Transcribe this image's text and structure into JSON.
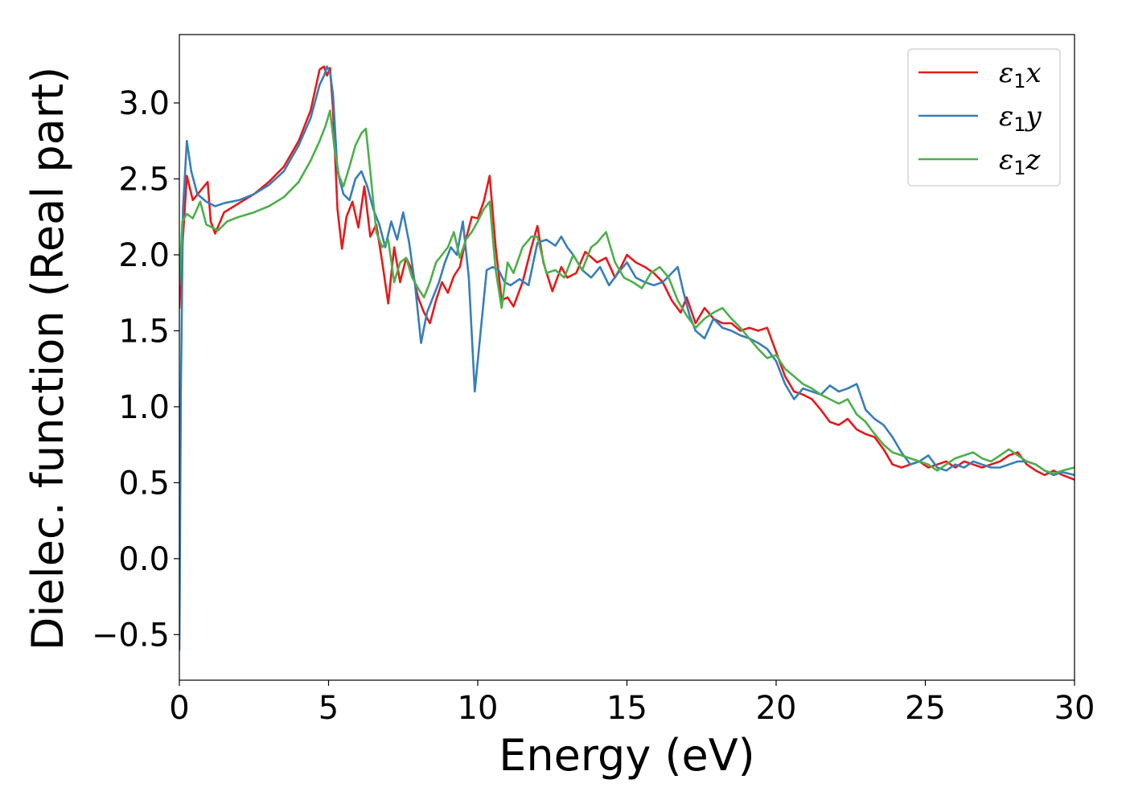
{
  "chart_data": {
    "type": "line",
    "xlabel": "Energy (eV)",
    "ylabel": "Dielec. function (Real part)",
    "xlim": [
      0,
      30
    ],
    "ylim": [
      -0.8,
      3.45
    ],
    "xticks": [
      0,
      5,
      10,
      15,
      20,
      25,
      30
    ],
    "xtick_labels": [
      "0",
      "5",
      "10",
      "15",
      "20",
      "25",
      "30"
    ],
    "yticks": [
      -0.5,
      0.0,
      0.5,
      1.0,
      1.5,
      2.0,
      2.5,
      3.0
    ],
    "ytick_labels": [
      "−0.5",
      "0.0",
      "0.5",
      "1.0",
      "1.5",
      "2.0",
      "2.5",
      "3.0"
    ],
    "grid": false,
    "legend_position": "top-right",
    "series": [
      {
        "name": "ε1x",
        "legend": {
          "symbol": "ε",
          "sub": "1",
          "axis": "x"
        },
        "color": "#e41a1c",
        "x": [
          0.0,
          0.1,
          0.25,
          0.45,
          0.7,
          0.95,
          1.05,
          1.2,
          1.5,
          2.0,
          2.5,
          3.0,
          3.5,
          4.0,
          4.4,
          4.7,
          4.85,
          4.95,
          5.05,
          5.15,
          5.3,
          5.45,
          5.6,
          5.8,
          6.0,
          6.2,
          6.4,
          6.6,
          6.8,
          7.0,
          7.2,
          7.4,
          7.6,
          7.8,
          8.0,
          8.2,
          8.4,
          8.6,
          8.8,
          9.0,
          9.2,
          9.4,
          9.6,
          9.8,
          10.0,
          10.2,
          10.4,
          10.6,
          10.8,
          11.0,
          11.2,
          11.5,
          11.8,
          12.0,
          12.2,
          12.5,
          12.8,
          13.0,
          13.3,
          13.6,
          14.0,
          14.3,
          14.6,
          14.8,
          15.0,
          15.3,
          15.6,
          15.9,
          16.2,
          16.5,
          16.8,
          17.0,
          17.3,
          17.6,
          17.9,
          18.2,
          18.5,
          18.8,
          19.1,
          19.4,
          19.7,
          20.0,
          20.3,
          20.6,
          20.9,
          21.2,
          21.5,
          21.8,
          22.1,
          22.4,
          22.7,
          23.0,
          23.3,
          23.6,
          23.9,
          24.2,
          24.5,
          24.8,
          25.1,
          25.4,
          25.7,
          26.0,
          26.3,
          26.6,
          26.9,
          27.2,
          27.5,
          27.8,
          28.1,
          28.4,
          28.7,
          29.0,
          29.3,
          29.6,
          30.0
        ],
        "y": [
          1.65,
          2.05,
          2.52,
          2.36,
          2.42,
          2.48,
          2.22,
          2.14,
          2.28,
          2.34,
          2.4,
          2.48,
          2.58,
          2.75,
          2.95,
          3.22,
          3.24,
          3.18,
          3.23,
          2.95,
          2.3,
          2.04,
          2.25,
          2.35,
          2.18,
          2.45,
          2.12,
          2.2,
          1.95,
          1.68,
          2.05,
          1.82,
          1.98,
          1.9,
          1.72,
          1.62,
          1.55,
          1.7,
          1.82,
          1.75,
          1.86,
          1.92,
          2.1,
          2.25,
          2.24,
          2.35,
          2.52,
          2.05,
          1.7,
          1.72,
          1.66,
          1.82,
          2.05,
          2.19,
          1.95,
          1.76,
          1.92,
          1.85,
          1.88,
          2.02,
          1.95,
          1.98,
          1.85,
          1.92,
          2.0,
          1.95,
          1.92,
          1.88,
          1.82,
          1.7,
          1.62,
          1.72,
          1.55,
          1.65,
          1.58,
          1.55,
          1.55,
          1.5,
          1.52,
          1.5,
          1.52,
          1.36,
          1.2,
          1.1,
          1.08,
          1.05,
          0.98,
          0.9,
          0.88,
          0.92,
          0.85,
          0.82,
          0.8,
          0.72,
          0.62,
          0.6,
          0.62,
          0.64,
          0.6,
          0.62,
          0.64,
          0.6,
          0.64,
          0.62,
          0.6,
          0.62,
          0.64,
          0.68,
          0.7,
          0.62,
          0.58,
          0.55,
          0.58,
          0.55,
          0.52
        ]
      },
      {
        "name": "ε1y",
        "legend": {
          "symbol": "ε",
          "sub": "1",
          "axis": "y"
        },
        "color": "#377eb8",
        "x": [
          0.0,
          0.05,
          0.12,
          0.25,
          0.4,
          0.6,
          0.9,
          1.2,
          1.5,
          2.0,
          2.5,
          3.0,
          3.5,
          4.0,
          4.4,
          4.7,
          4.85,
          4.95,
          5.05,
          5.15,
          5.3,
          5.5,
          5.7,
          5.9,
          6.1,
          6.3,
          6.5,
          6.7,
          6.9,
          7.1,
          7.3,
          7.5,
          7.7,
          7.9,
          8.1,
          8.3,
          8.5,
          8.7,
          8.9,
          9.1,
          9.3,
          9.5,
          9.7,
          9.9,
          10.1,
          10.3,
          10.5,
          10.7,
          10.9,
          11.1,
          11.4,
          11.7,
          12.0,
          12.3,
          12.6,
          12.8,
          13.0,
          13.2,
          13.5,
          13.8,
          14.1,
          14.4,
          14.7,
          15.0,
          15.3,
          15.6,
          15.9,
          16.2,
          16.5,
          16.7,
          16.9,
          17.1,
          17.3,
          17.6,
          17.9,
          18.2,
          18.5,
          18.8,
          19.1,
          19.4,
          19.7,
          20.0,
          20.3,
          20.6,
          20.9,
          21.2,
          21.5,
          21.8,
          22.1,
          22.4,
          22.7,
          23.0,
          23.3,
          23.6,
          23.9,
          24.2,
          24.5,
          24.8,
          25.1,
          25.4,
          25.7,
          26.0,
          26.3,
          26.6,
          26.9,
          27.2,
          27.5,
          27.8,
          28.1,
          28.4,
          28.7,
          29.0,
          29.3,
          29.6,
          30.0
        ],
        "y": [
          -0.6,
          1.1,
          2.3,
          2.75,
          2.55,
          2.4,
          2.35,
          2.32,
          2.34,
          2.36,
          2.4,
          2.46,
          2.55,
          2.72,
          2.9,
          3.12,
          3.18,
          3.24,
          3.2,
          3.05,
          2.55,
          2.4,
          2.36,
          2.5,
          2.55,
          2.45,
          2.3,
          2.2,
          2.05,
          2.22,
          2.1,
          2.28,
          2.08,
          1.8,
          1.42,
          1.62,
          1.72,
          1.82,
          1.95,
          2.05,
          2.0,
          2.22,
          1.85,
          1.1,
          1.5,
          1.9,
          1.92,
          1.9,
          1.82,
          1.8,
          1.84,
          1.8,
          2.08,
          2.1,
          2.06,
          2.12,
          2.05,
          2.0,
          1.9,
          1.85,
          1.92,
          1.8,
          1.88,
          1.95,
          1.85,
          1.82,
          1.8,
          1.82,
          1.88,
          1.92,
          1.75,
          1.6,
          1.5,
          1.45,
          1.58,
          1.52,
          1.5,
          1.47,
          1.45,
          1.42,
          1.38,
          1.3,
          1.15,
          1.05,
          1.12,
          1.1,
          1.08,
          1.14,
          1.1,
          1.12,
          1.15,
          0.98,
          0.92,
          0.88,
          0.8,
          0.7,
          0.62,
          0.64,
          0.68,
          0.6,
          0.58,
          0.62,
          0.6,
          0.64,
          0.62,
          0.6,
          0.6,
          0.62,
          0.64,
          0.64,
          0.62,
          0.58,
          0.55,
          0.57,
          0.55
        ]
      },
      {
        "name": "ε1z",
        "legend": {
          "symbol": "ε",
          "sub": "1",
          "axis": "z"
        },
        "color": "#4daf4a",
        "x": [
          0.0,
          0.1,
          0.25,
          0.45,
          0.7,
          0.9,
          1.1,
          1.3,
          1.6,
          2.0,
          2.5,
          3.0,
          3.5,
          4.0,
          4.4,
          4.7,
          4.9,
          5.05,
          5.2,
          5.35,
          5.5,
          5.7,
          5.9,
          6.1,
          6.25,
          6.4,
          6.6,
          6.8,
          7.0,
          7.2,
          7.4,
          7.6,
          7.8,
          8.0,
          8.2,
          8.4,
          8.6,
          8.8,
          9.0,
          9.2,
          9.4,
          9.6,
          9.8,
          10.0,
          10.2,
          10.4,
          10.6,
          10.8,
          11.0,
          11.2,
          11.5,
          11.8,
          12.0,
          12.3,
          12.6,
          12.9,
          13.2,
          13.5,
          13.8,
          14.0,
          14.3,
          14.6,
          14.9,
          15.2,
          15.5,
          15.8,
          16.1,
          16.4,
          16.7,
          17.0,
          17.3,
          17.6,
          17.9,
          18.2,
          18.5,
          18.8,
          19.1,
          19.4,
          19.7,
          20.0,
          20.3,
          20.6,
          20.9,
          21.2,
          21.5,
          21.8,
          22.1,
          22.4,
          22.7,
          23.0,
          23.3,
          23.6,
          23.9,
          24.2,
          24.5,
          24.8,
          25.1,
          25.4,
          25.7,
          26.0,
          26.3,
          26.6,
          26.9,
          27.2,
          27.5,
          27.8,
          28.1,
          28.4,
          28.7,
          29.0,
          29.3,
          29.6,
          30.0
        ],
        "y": [
          1.8,
          2.22,
          2.27,
          2.24,
          2.35,
          2.2,
          2.18,
          2.16,
          2.22,
          2.25,
          2.28,
          2.32,
          2.38,
          2.48,
          2.62,
          2.75,
          2.85,
          2.95,
          2.7,
          2.52,
          2.45,
          2.58,
          2.72,
          2.8,
          2.83,
          2.55,
          2.15,
          2.05,
          2.1,
          1.82,
          1.95,
          1.98,
          1.85,
          1.78,
          1.72,
          1.82,
          1.95,
          2.0,
          2.05,
          2.15,
          1.98,
          2.1,
          2.15,
          2.22,
          2.3,
          2.35,
          1.9,
          1.65,
          1.95,
          1.88,
          2.05,
          2.12,
          2.12,
          1.88,
          1.9,
          1.85,
          2.0,
          1.9,
          2.05,
          2.08,
          2.15,
          1.95,
          1.85,
          1.82,
          1.78,
          1.88,
          1.92,
          1.85,
          1.7,
          1.6,
          1.52,
          1.58,
          1.62,
          1.65,
          1.58,
          1.52,
          1.45,
          1.38,
          1.32,
          1.34,
          1.25,
          1.2,
          1.15,
          1.12,
          1.08,
          1.05,
          1.02,
          1.05,
          0.95,
          0.9,
          0.82,
          0.75,
          0.7,
          0.68,
          0.66,
          0.64,
          0.62,
          0.58,
          0.62,
          0.66,
          0.68,
          0.7,
          0.66,
          0.64,
          0.68,
          0.72,
          0.68,
          0.64,
          0.62,
          0.58,
          0.56,
          0.58,
          0.6
        ]
      }
    ]
  }
}
